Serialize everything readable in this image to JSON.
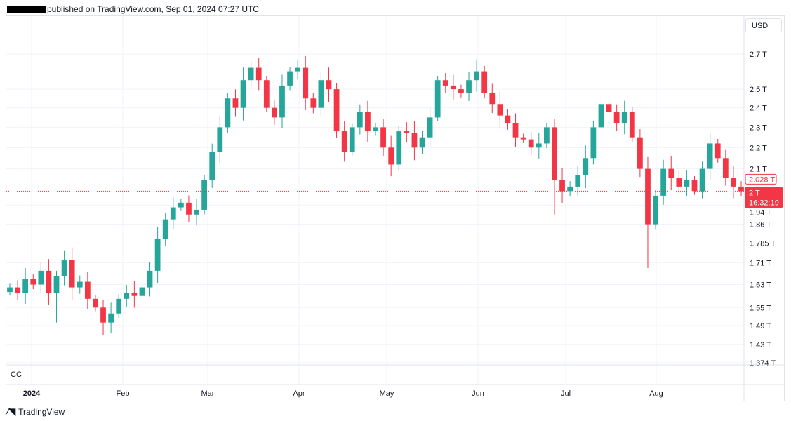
{
  "header": {
    "text": "published on TradingView.com, Sep 01, 2024 07:27 UTC"
  },
  "currency": "USD",
  "pane_label": "CC",
  "footer": {
    "brand": "TradingView"
  },
  "colors": {
    "up": "#26a69a",
    "down": "#f23645",
    "grid": "#f0f3fa"
  },
  "chart_data": {
    "type": "candlestick",
    "title": "CC",
    "yscale": "log",
    "ylim": [
      1.36,
      2.78
    ],
    "y_ticks": [
      "2.7 T",
      "2.5 T",
      "2.4 T",
      "2.3 T",
      "2.2 T",
      "2.1 T",
      "1.94 T",
      "1.86 T",
      "1.785 T",
      "1.71 T",
      "1.63 T",
      "1.55 T",
      "1.49 T",
      "1.43 T",
      "1.374 T"
    ],
    "y_tick_values": [
      2.7,
      2.5,
      2.4,
      2.3,
      2.2,
      2.1,
      1.94,
      1.86,
      1.785,
      1.71,
      1.63,
      1.55,
      1.49,
      1.43,
      1.374
    ],
    "x_ticks": [
      "2024",
      "Feb",
      "Mar",
      "Apr",
      "May",
      "Jun",
      "Jul",
      "Aug"
    ],
    "last_price_label": "2.028 T",
    "current_price_label": "2 T",
    "current_price": 2.0,
    "countdown": "16:32:19",
    "unit": "T",
    "closes": [
      1.62,
      1.6,
      1.65,
      1.63,
      1.68,
      1.6,
      1.66,
      1.72,
      1.62,
      1.64,
      1.58,
      1.55,
      1.5,
      1.53,
      1.58,
      1.6,
      1.59,
      1.62,
      1.68,
      1.8,
      1.88,
      1.93,
      1.95,
      1.9,
      1.92,
      2.05,
      2.18,
      2.3,
      2.45,
      2.4,
      2.55,
      2.62,
      2.55,
      2.4,
      2.35,
      2.52,
      2.6,
      2.62,
      2.45,
      2.4,
      2.55,
      2.5,
      2.28,
      2.18,
      2.3,
      2.38,
      2.28,
      2.3,
      2.2,
      2.12,
      2.28,
      2.27,
      2.2,
      2.25,
      2.35,
      2.55,
      2.52,
      2.5,
      2.48,
      2.55,
      2.6,
      2.48,
      2.42,
      2.36,
      2.32,
      2.25,
      2.24,
      2.2,
      2.22,
      2.3,
      2.05,
      2.0,
      2.02,
      2.07,
      2.15,
      2.3,
      2.42,
      2.38,
      2.32,
      2.38,
      2.25,
      2.1,
      1.86,
      1.98,
      2.1,
      2.06,
      2.02,
      2.05,
      2.0,
      2.1,
      2.22,
      2.15,
      2.06,
      2.02,
      2.0
    ]
  }
}
